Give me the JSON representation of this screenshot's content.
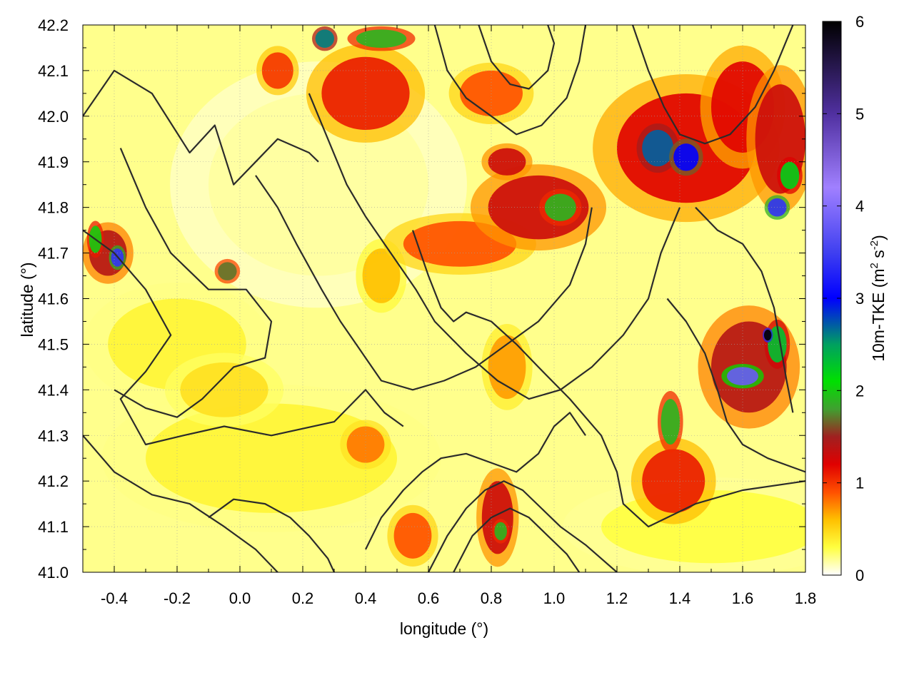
{
  "chart_data": {
    "type": "heatmap",
    "title": "",
    "xlabel": "longitude (°)",
    "ylabel": "latitude (°)",
    "xlim": [
      -0.5,
      1.8
    ],
    "ylim": [
      41.0,
      42.2
    ],
    "x_ticks": [
      -0.4,
      -0.2,
      0.0,
      0.2,
      0.4,
      0.6,
      0.8,
      1.0,
      1.2,
      1.4,
      1.6,
      1.8
    ],
    "x_tick_labels": [
      "-0.4",
      "-0.2",
      "0.0",
      "0.2",
      "0.4",
      "0.6",
      "0.8",
      "1.0",
      "1.2",
      "1.4",
      "1.6",
      "1.8"
    ],
    "y_ticks": [
      41.0,
      41.1,
      41.2,
      41.3,
      41.4,
      41.5,
      41.6,
      41.7,
      41.8,
      41.9,
      42.0,
      42.1,
      42.2
    ],
    "y_tick_labels": [
      "41.0",
      "41.1",
      "41.2",
      "41.3",
      "41.4",
      "41.5",
      "41.6",
      "41.7",
      "41.8",
      "41.9",
      "42.0",
      "42.1",
      "42.2"
    ],
    "grid": true,
    "colorbar": {
      "label_parts": [
        "10m-TKE (m",
        "2",
        " s",
        "-2",
        ")"
      ],
      "range": [
        0,
        6
      ],
      "ticks": [
        0,
        1,
        2,
        3,
        4,
        5,
        6
      ],
      "tick_labels": [
        "0",
        "1",
        "2",
        "3",
        "4",
        "5",
        "6"
      ],
      "palette": [
        {
          "v": 0.0,
          "color": "#ffffff"
        },
        {
          "v": 0.3,
          "color": "#ffff40"
        },
        {
          "v": 0.6,
          "color": "#ffc000"
        },
        {
          "v": 0.9,
          "color": "#ff5000"
        },
        {
          "v": 1.2,
          "color": "#e00000"
        },
        {
          "v": 1.5,
          "color": "#a02020"
        },
        {
          "v": 1.8,
          "color": "#40a030"
        },
        {
          "v": 2.1,
          "color": "#00e000"
        },
        {
          "v": 2.5,
          "color": "#00a060"
        },
        {
          "v": 3.0,
          "color": "#0000ff"
        },
        {
          "v": 3.5,
          "color": "#4040f0"
        },
        {
          "v": 4.2,
          "color": "#a080ff"
        },
        {
          "v": 5.0,
          "color": "#5030a0"
        },
        {
          "v": 6.0,
          "color": "#000000"
        }
      ]
    },
    "hotspots": [
      {
        "lon": 0.95,
        "lat": 41.8,
        "rx": 0.16,
        "ry": 0.07,
        "v": 1.3
      },
      {
        "lon": 1.02,
        "lat": 41.8,
        "rx": 0.05,
        "ry": 0.03,
        "v": 1.9
      },
      {
        "lon": 0.7,
        "lat": 41.72,
        "rx": 0.18,
        "ry": 0.05,
        "v": 0.9
      },
      {
        "lon": 1.42,
        "lat": 41.93,
        "rx": 0.22,
        "ry": 0.12,
        "v": 1.2
      },
      {
        "lon": 1.33,
        "lat": 41.93,
        "rx": 0.05,
        "ry": 0.04,
        "v": 2.7
      },
      {
        "lon": 1.42,
        "lat": 41.91,
        "rx": 0.04,
        "ry": 0.03,
        "v": 3.0
      },
      {
        "lon": 1.6,
        "lat": 42.02,
        "rx": 0.1,
        "ry": 0.1,
        "v": 1.2
      },
      {
        "lon": 1.72,
        "lat": 41.95,
        "rx": 0.08,
        "ry": 0.12,
        "v": 1.3
      },
      {
        "lon": 1.75,
        "lat": 41.87,
        "rx": 0.03,
        "ry": 0.03,
        "v": 2.2
      },
      {
        "lon": 1.71,
        "lat": 41.8,
        "rx": 0.03,
        "ry": 0.02,
        "v": 3.4
      },
      {
        "lon": 1.62,
        "lat": 41.45,
        "rx": 0.12,
        "ry": 0.1,
        "v": 1.4
      },
      {
        "lon": 1.6,
        "lat": 41.43,
        "rx": 0.05,
        "ry": 0.02,
        "v": 3.8
      },
      {
        "lon": 1.71,
        "lat": 41.5,
        "rx": 0.03,
        "ry": 0.04,
        "v": 2.3
      },
      {
        "lon": 1.68,
        "lat": 41.52,
        "rx": 0.012,
        "ry": 0.012,
        "v": 6.0
      },
      {
        "lon": 1.38,
        "lat": 41.2,
        "rx": 0.1,
        "ry": 0.07,
        "v": 1.1
      },
      {
        "lon": 1.37,
        "lat": 41.33,
        "rx": 0.03,
        "ry": 0.05,
        "v": 1.9
      },
      {
        "lon": 0.4,
        "lat": 42.05,
        "rx": 0.14,
        "ry": 0.08,
        "v": 1.1
      },
      {
        "lon": 0.27,
        "lat": 42.17,
        "rx": 0.03,
        "ry": 0.02,
        "v": 2.6
      },
      {
        "lon": 0.45,
        "lat": 42.17,
        "rx": 0.08,
        "ry": 0.02,
        "v": 1.9
      },
      {
        "lon": 0.12,
        "lat": 42.1,
        "rx": 0.05,
        "ry": 0.04,
        "v": 1.0
      },
      {
        "lon": 0.8,
        "lat": 42.05,
        "rx": 0.1,
        "ry": 0.05,
        "v": 0.9
      },
      {
        "lon": 0.85,
        "lat": 41.9,
        "rx": 0.06,
        "ry": 0.03,
        "v": 1.3
      },
      {
        "lon": -0.42,
        "lat": 41.7,
        "rx": 0.06,
        "ry": 0.05,
        "v": 1.4
      },
      {
        "lon": -0.39,
        "lat": 41.69,
        "rx": 0.02,
        "ry": 0.02,
        "v": 3.4
      },
      {
        "lon": -0.46,
        "lat": 41.73,
        "rx": 0.02,
        "ry": 0.03,
        "v": 2.0
      },
      {
        "lon": -0.04,
        "lat": 41.66,
        "rx": 0.03,
        "ry": 0.02,
        "v": 1.7
      },
      {
        "lon": 0.82,
        "lat": 41.12,
        "rx": 0.05,
        "ry": 0.08,
        "v": 1.3
      },
      {
        "lon": 0.83,
        "lat": 41.09,
        "rx": 0.02,
        "ry": 0.02,
        "v": 1.9
      },
      {
        "lon": 0.55,
        "lat": 41.08,
        "rx": 0.06,
        "ry": 0.05,
        "v": 0.9
      },
      {
        "lon": 0.4,
        "lat": 41.28,
        "rx": 0.06,
        "ry": 0.04,
        "v": 0.8
      },
      {
        "lon": -0.2,
        "lat": 41.5,
        "rx": 0.22,
        "ry": 0.1,
        "v": 0.35
      },
      {
        "lon": -0.05,
        "lat": 41.4,
        "rx": 0.14,
        "ry": 0.06,
        "v": 0.45
      },
      {
        "lon": 0.45,
        "lat": 41.65,
        "rx": 0.06,
        "ry": 0.06,
        "v": 0.6
      },
      {
        "lon": 1.5,
        "lat": 41.1,
        "rx": 0.35,
        "ry": 0.08,
        "v": 0.3
      },
      {
        "lon": 0.1,
        "lat": 41.25,
        "rx": 0.4,
        "ry": 0.12,
        "v": 0.35
      },
      {
        "lon": 0.85,
        "lat": 41.45,
        "rx": 0.06,
        "ry": 0.07,
        "v": 0.7
      },
      {
        "lon": 0.25,
        "lat": 41.85,
        "rx": 0.35,
        "ry": 0.2,
        "v": 0.15
      }
    ],
    "contours": [
      [
        [
          -0.5,
          42.0
        ],
        [
          -0.4,
          42.1
        ],
        [
          -0.28,
          42.05
        ],
        [
          -0.16,
          41.92
        ],
        [
          -0.08,
          41.98
        ],
        [
          -0.02,
          41.85
        ],
        [
          0.05,
          41.9
        ],
        [
          0.12,
          41.95
        ],
        [
          0.22,
          41.92
        ],
        [
          0.25,
          41.9
        ]
      ],
      [
        [
          -0.5,
          41.75
        ],
        [
          -0.4,
          41.7
        ],
        [
          -0.3,
          41.62
        ],
        [
          -0.22,
          41.52
        ],
        [
          -0.3,
          41.44
        ],
        [
          -0.38,
          41.38
        ],
        [
          -0.3,
          41.28
        ],
        [
          -0.18,
          41.3
        ],
        [
          -0.05,
          41.32
        ],
        [
          0.1,
          41.3
        ],
        [
          0.3,
          41.33
        ],
        [
          0.4,
          41.4
        ],
        [
          0.46,
          41.35
        ],
        [
          0.52,
          41.32
        ]
      ],
      [
        [
          -0.38,
          41.93
        ],
        [
          -0.3,
          41.8
        ],
        [
          -0.22,
          41.7
        ],
        [
          -0.1,
          41.62
        ],
        [
          0.02,
          41.62
        ],
        [
          0.1,
          41.55
        ],
        [
          0.08,
          41.47
        ],
        [
          -0.02,
          41.45
        ],
        [
          -0.12,
          41.38
        ],
        [
          -0.2,
          41.34
        ],
        [
          -0.3,
          41.36
        ],
        [
          -0.4,
          41.4
        ]
      ],
      [
        [
          0.05,
          41.87
        ],
        [
          0.12,
          41.8
        ],
        [
          0.18,
          41.72
        ],
        [
          0.26,
          41.62
        ],
        [
          0.32,
          41.55
        ],
        [
          0.37,
          41.5
        ],
        [
          0.45,
          41.42
        ],
        [
          0.55,
          41.4
        ],
        [
          0.65,
          41.42
        ],
        [
          0.75,
          41.45
        ],
        [
          0.85,
          41.5
        ],
        [
          0.95,
          41.55
        ],
        [
          1.05,
          41.63
        ],
        [
          1.1,
          41.72
        ],
        [
          1.12,
          41.8
        ]
      ],
      [
        [
          0.22,
          42.05
        ],
        [
          0.28,
          41.95
        ],
        [
          0.34,
          41.85
        ],
        [
          0.4,
          41.78
        ],
        [
          0.48,
          41.7
        ],
        [
          0.56,
          41.62
        ],
        [
          0.62,
          41.55
        ],
        [
          0.72,
          41.48
        ],
        [
          0.82,
          41.42
        ],
        [
          0.92,
          41.38
        ],
        [
          1.02,
          41.4
        ],
        [
          1.12,
          41.45
        ],
        [
          1.22,
          41.52
        ],
        [
          1.3,
          41.6
        ],
        [
          1.34,
          41.7
        ],
        [
          1.4,
          41.8
        ]
      ],
      [
        [
          0.55,
          41.75
        ],
        [
          0.6,
          41.65
        ],
        [
          0.64,
          41.58
        ],
        [
          0.68,
          41.55
        ],
        [
          0.72,
          41.57
        ],
        [
          0.8,
          41.55
        ],
        [
          0.88,
          41.5
        ],
        [
          0.95,
          41.45
        ],
        [
          1.05,
          41.38
        ],
        [
          1.15,
          41.3
        ],
        [
          1.2,
          41.22
        ],
        [
          1.22,
          41.15
        ],
        [
          1.3,
          41.1
        ],
        [
          1.45,
          41.15
        ],
        [
          1.6,
          41.18
        ],
        [
          1.8,
          41.2
        ]
      ],
      [
        [
          0.4,
          41.05
        ],
        [
          0.45,
          41.12
        ],
        [
          0.52,
          41.18
        ],
        [
          0.58,
          41.22
        ],
        [
          0.64,
          41.25
        ],
        [
          0.72,
          41.26
        ],
        [
          0.8,
          41.24
        ],
        [
          0.88,
          41.22
        ],
        [
          0.95,
          41.26
        ],
        [
          1.0,
          41.32
        ],
        [
          1.05,
          41.35
        ],
        [
          1.1,
          41.3
        ]
      ],
      [
        [
          0.6,
          41.0
        ],
        [
          0.66,
          41.08
        ],
        [
          0.72,
          41.14
        ],
        [
          0.78,
          41.18
        ],
        [
          0.84,
          41.2
        ],
        [
          0.9,
          41.18
        ],
        [
          0.96,
          41.14
        ],
        [
          1.02,
          41.1
        ],
        [
          1.1,
          41.06
        ],
        [
          1.2,
          41.0
        ]
      ],
      [
        [
          0.68,
          41.0
        ],
        [
          0.74,
          41.08
        ],
        [
          0.8,
          41.12
        ],
        [
          0.86,
          41.14
        ],
        [
          0.92,
          41.12
        ],
        [
          0.98,
          41.08
        ],
        [
          1.04,
          41.04
        ],
        [
          1.08,
          41.0
        ]
      ],
      [
        [
          0.62,
          42.2
        ],
        [
          0.66,
          42.1
        ],
        [
          0.72,
          42.04
        ],
        [
          0.8,
          42.0
        ],
        [
          0.88,
          41.96
        ],
        [
          0.96,
          41.98
        ],
        [
          1.04,
          42.04
        ],
        [
          1.08,
          42.12
        ],
        [
          1.1,
          42.2
        ]
      ],
      [
        [
          0.76,
          42.2
        ],
        [
          0.8,
          42.12
        ],
        [
          0.86,
          42.07
        ],
        [
          0.92,
          42.06
        ],
        [
          0.98,
          42.1
        ],
        [
          1.0,
          42.16
        ],
        [
          0.98,
          42.2
        ]
      ],
      [
        [
          1.25,
          42.2
        ],
        [
          1.3,
          42.1
        ],
        [
          1.35,
          42.02
        ],
        [
          1.4,
          41.96
        ],
        [
          1.48,
          41.94
        ],
        [
          1.56,
          41.96
        ],
        [
          1.64,
          42.02
        ],
        [
          1.7,
          42.1
        ],
        [
          1.76,
          42.2
        ]
      ],
      [
        [
          1.45,
          41.8
        ],
        [
          1.52,
          41.75
        ],
        [
          1.6,
          41.72
        ],
        [
          1.66,
          41.66
        ],
        [
          1.7,
          41.58
        ],
        [
          1.72,
          41.5
        ],
        [
          1.74,
          41.42
        ],
        [
          1.76,
          41.35
        ]
      ],
      [
        [
          1.36,
          41.6
        ],
        [
          1.42,
          41.55
        ],
        [
          1.48,
          41.48
        ],
        [
          1.52,
          41.4
        ],
        [
          1.55,
          41.33
        ],
        [
          1.6,
          41.28
        ],
        [
          1.68,
          41.25
        ],
        [
          1.76,
          41.23
        ],
        [
          1.8,
          41.22
        ]
      ],
      [
        [
          -0.1,
          41.12
        ],
        [
          -0.02,
          41.16
        ],
        [
          0.08,
          41.15
        ],
        [
          0.16,
          41.12
        ],
        [
          0.22,
          41.08
        ],
        [
          0.28,
          41.03
        ],
        [
          0.3,
          41.0
        ]
      ],
      [
        [
          -0.5,
          41.3
        ],
        [
          -0.4,
          41.22
        ],
        [
          -0.28,
          41.17
        ],
        [
          -0.16,
          41.15
        ],
        [
          -0.05,
          41.1
        ],
        [
          0.05,
          41.05
        ],
        [
          0.12,
          41.0
        ]
      ]
    ]
  }
}
